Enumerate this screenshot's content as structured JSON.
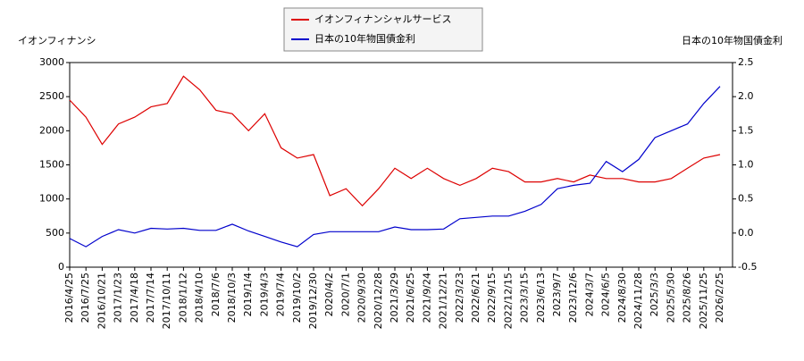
{
  "chart_data": {
    "type": "line",
    "y_label": "イオンフィナンシ",
    "y2_label": "日本の10年物国債金利",
    "x": [
      "2016/4/25",
      "2016/7/25",
      "2016/10/21",
      "2017/1/23",
      "2017/4/18",
      "2017/7/14",
      "2017/10/11",
      "2018/1/12",
      "2018/4/10",
      "2018/7/6",
      "2018/10/3",
      "2019/1/4",
      "2019/4/3",
      "2019/7/4",
      "2019/10/2",
      "2019/12/30",
      "2020/4/2",
      "2020/7/1",
      "2020/9/30",
      "2020/12/28",
      "2021/3/29",
      "2021/6/25",
      "2021/9/24",
      "2021/12/21",
      "2022/3/23",
      "2022/6/21",
      "2022/9/15",
      "2022/12/15",
      "2023/3/15",
      "2023/6/13",
      "2023/9/7",
      "2023/12/6",
      "2024/3/7",
      "2024/6/5",
      "2024/8/30",
      "2024/11/28",
      "2025/3/3",
      "2025/5/30",
      "2025/8/26",
      "2025/11/25",
      "2026/2/25"
    ],
    "series": [
      {
        "name": "イオンフィナンシャルサービス",
        "color": "#dd0000",
        "axis": "y",
        "values": [
          2450,
          2200,
          1800,
          2100,
          2200,
          2350,
          2400,
          2800,
          2600,
          2300,
          2250,
          2000,
          2250,
          1750,
          1600,
          1650,
          1050,
          1150,
          900,
          1150,
          1450,
          1300,
          1450,
          1300,
          1200,
          1300,
          1450,
          1400,
          1250,
          1250,
          1300,
          1250,
          1350,
          1300,
          1300,
          1250,
          1250,
          1300,
          1450,
          1600,
          1650
        ]
      },
      {
        "name": "日本の10年物国債金利",
        "color": "#0000cc",
        "axis": "y2",
        "values": [
          -0.08,
          -0.2,
          -0.05,
          0.05,
          0.0,
          0.07,
          0.06,
          0.07,
          0.04,
          0.04,
          0.13,
          0.03,
          -0.05,
          -0.13,
          -0.2,
          -0.02,
          0.02,
          0.02,
          0.02,
          0.02,
          0.09,
          0.05,
          0.05,
          0.06,
          0.21,
          0.23,
          0.25,
          0.25,
          0.32,
          0.42,
          0.65,
          0.7,
          0.73,
          1.05,
          0.9,
          1.08,
          1.4,
          1.5,
          1.6,
          1.9,
          2.15
        ]
      }
    ],
    "ylim": [
      0,
      3000
    ],
    "yticks": [
      0,
      500,
      1000,
      1500,
      2000,
      2500,
      3000
    ],
    "y2lim": [
      -0.5,
      2.5
    ],
    "y2ticks": [
      -0.5,
      {
        "value": 0,
        "label": "0.0"
      },
      0.5,
      {
        "value": 1,
        "label": "1.0"
      },
      1.5,
      {
        "value": 2,
        "label": "2.0"
      },
      2.5
    ],
    "legend": "top"
  }
}
